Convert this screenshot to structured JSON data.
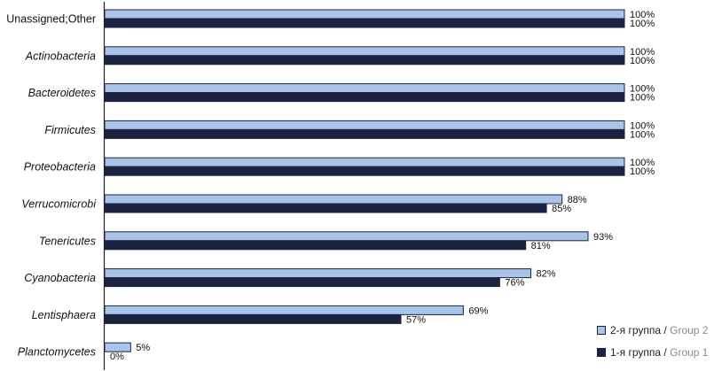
{
  "chart_data": {
    "type": "bar",
    "orientation": "horizontal",
    "categories": [
      "Unassigned;Other",
      "Actinobacteria",
      "Bacteroidetes",
      "Firmicutes",
      "Proteobacteria",
      "Verrucomicrobi",
      "Tenericutes",
      "Cyanobacteria",
      "Lentisphaera",
      "Planctomycetes"
    ],
    "italic_categories": [
      false,
      true,
      true,
      true,
      true,
      true,
      true,
      true,
      true,
      true
    ],
    "series": [
      {
        "name": "2-я группа / Group 2",
        "name_ru": "2-я группа",
        "name_en": "Group 2",
        "color": "#a9c4e8",
        "values": [
          100,
          100,
          100,
          100,
          100,
          88,
          93,
          82,
          69,
          5
        ],
        "labels": [
          "100%",
          "100%",
          "100%",
          "100%",
          "100%",
          "88%",
          "93%",
          "82%",
          "69%",
          "5%"
        ]
      },
      {
        "name": "1-я группа / Group 1",
        "name_ru": "1-я группа",
        "name_en": "Group 1",
        "color": "#1c2340",
        "values": [
          100,
          100,
          100,
          100,
          100,
          85,
          81,
          76,
          57,
          0
        ],
        "labels": [
          "100%",
          "100%",
          "100%",
          "100%",
          "100%",
          "85%",
          "81%",
          "76%",
          "57%",
          "0%"
        ]
      }
    ],
    "xlim": [
      0,
      100
    ],
    "grid": false,
    "legend_position": "bottom-right"
  }
}
